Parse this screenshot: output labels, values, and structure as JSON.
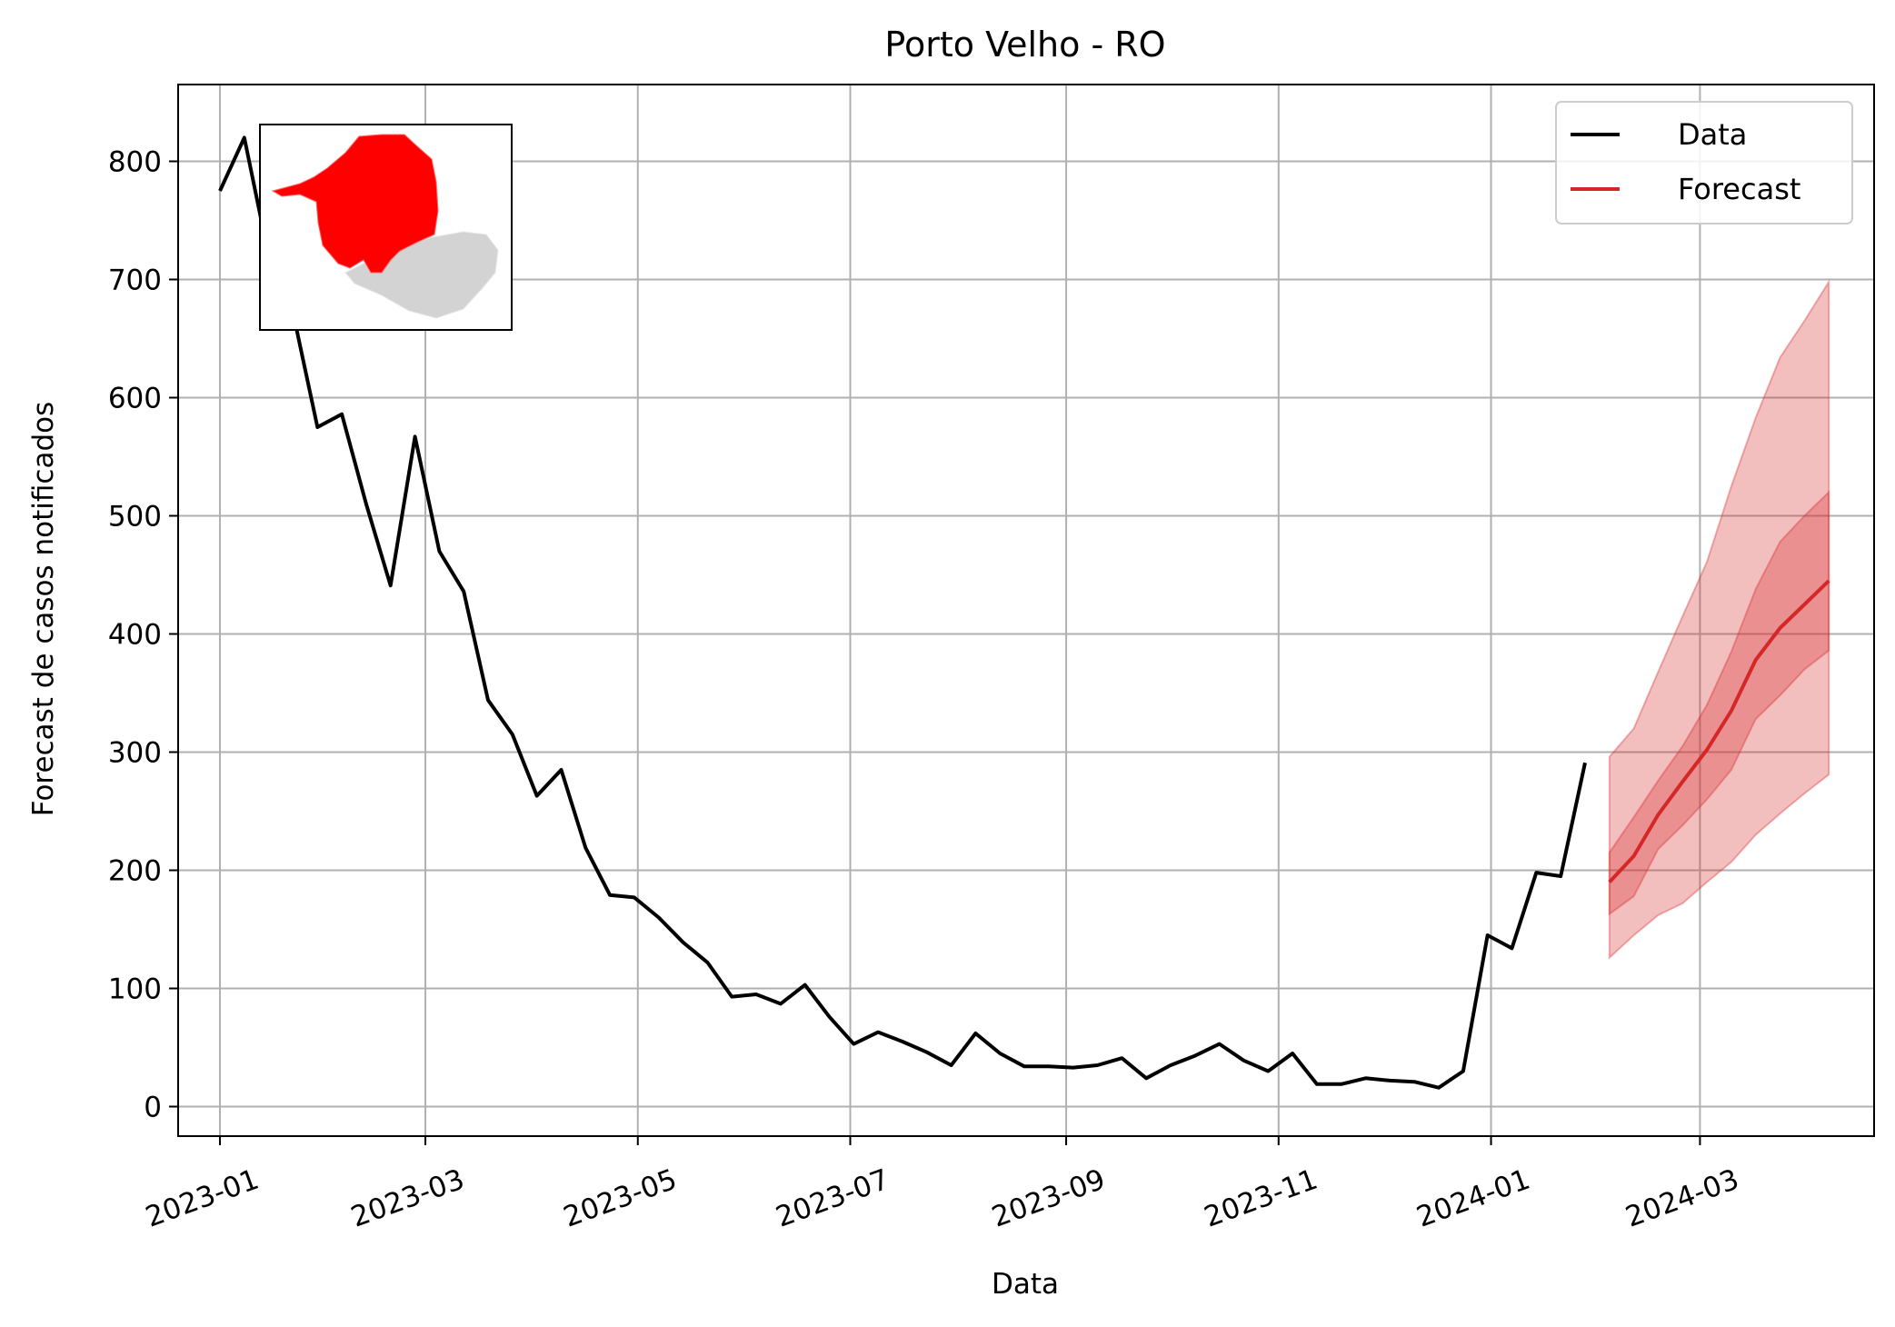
{
  "chart_data": {
    "type": "line",
    "title": "Porto Velho - RO",
    "xlabel": "Data",
    "ylabel": "Forecast de casos notificados",
    "x_tick_labels": [
      "2023-01",
      "2023-03",
      "2023-05",
      "2023-07",
      "2023-09",
      "2023-11",
      "2024-01",
      "2024-03"
    ],
    "x_tick_dates": [
      "2023-01-01",
      "2023-03-01",
      "2023-05-01",
      "2023-07-01",
      "2023-09-01",
      "2023-11-01",
      "2024-01-01",
      "2024-03-01"
    ],
    "x_range": [
      "2022-12-20",
      "2024-04-20"
    ],
    "y_ticks": [
      0,
      100,
      200,
      300,
      400,
      500,
      600,
      700,
      800
    ],
    "ylim": [
      -25,
      865
    ],
    "grid": true,
    "legend_position": "top-right",
    "series": [
      {
        "name": "Data",
        "color": "#000000",
        "points": [
          [
            "2023-01-01",
            775
          ],
          [
            "2023-01-08",
            820
          ],
          [
            "2023-01-15",
            720
          ],
          [
            "2023-01-22",
            672
          ],
          [
            "2023-01-29",
            575
          ],
          [
            "2023-02-05",
            586
          ],
          [
            "2023-02-12",
            510
          ],
          [
            "2023-02-19",
            441
          ],
          [
            "2023-02-26",
            567
          ],
          [
            "2023-03-05",
            470
          ],
          [
            "2023-03-12",
            436
          ],
          [
            "2023-03-19",
            344
          ],
          [
            "2023-03-26",
            315
          ],
          [
            "2023-04-02",
            263
          ],
          [
            "2023-04-09",
            285
          ],
          [
            "2023-04-16",
            219
          ],
          [
            "2023-04-23",
            179
          ],
          [
            "2023-04-30",
            177
          ],
          [
            "2023-05-07",
            160
          ],
          [
            "2023-05-14",
            139
          ],
          [
            "2023-05-21",
            122
          ],
          [
            "2023-05-28",
            93
          ],
          [
            "2023-06-04",
            95
          ],
          [
            "2023-06-11",
            87
          ],
          [
            "2023-06-18",
            103
          ],
          [
            "2023-06-25",
            76
          ],
          [
            "2023-07-02",
            53
          ],
          [
            "2023-07-09",
            63
          ],
          [
            "2023-07-16",
            55
          ],
          [
            "2023-07-23",
            46
          ],
          [
            "2023-07-30",
            35
          ],
          [
            "2023-08-06",
            62
          ],
          [
            "2023-08-13",
            45
          ],
          [
            "2023-08-20",
            34
          ],
          [
            "2023-08-27",
            34
          ],
          [
            "2023-09-03",
            33
          ],
          [
            "2023-09-10",
            35
          ],
          [
            "2023-09-17",
            41
          ],
          [
            "2023-09-24",
            24
          ],
          [
            "2023-10-01",
            35
          ],
          [
            "2023-10-08",
            43
          ],
          [
            "2023-10-15",
            53
          ],
          [
            "2023-10-22",
            39
          ],
          [
            "2023-10-29",
            30
          ],
          [
            "2023-11-05",
            45
          ],
          [
            "2023-11-12",
            19
          ],
          [
            "2023-11-19",
            19
          ],
          [
            "2023-11-26",
            24
          ],
          [
            "2023-12-03",
            22
          ],
          [
            "2023-12-10",
            21
          ],
          [
            "2023-12-17",
            16
          ],
          [
            "2023-12-24",
            30
          ],
          [
            "2023-12-31",
            145
          ],
          [
            "2024-01-07",
            134
          ],
          [
            "2024-01-14",
            198
          ],
          [
            "2024-01-21",
            195
          ],
          [
            "2024-01-28",
            291
          ]
        ]
      },
      {
        "name": "Forecast",
        "color": "#d62728",
        "points": [
          [
            "2024-02-04",
            190
          ],
          [
            "2024-02-11",
            212
          ],
          [
            "2024-02-18",
            247
          ],
          [
            "2024-02-25",
            275
          ],
          [
            "2024-03-03",
            302
          ],
          [
            "2024-03-10",
            335
          ],
          [
            "2024-03-17",
            378
          ],
          [
            "2024-03-24",
            405
          ],
          [
            "2024-03-31",
            425
          ],
          [
            "2024-04-07",
            445
          ]
        ],
        "band_90": {
          "lower": [
            126,
            145,
            162,
            172,
            190,
            207,
            230,
            248,
            265,
            281
          ],
          "upper": [
            296,
            320,
            368,
            415,
            461,
            525,
            583,
            634,
            665,
            698
          ]
        },
        "band_50": {
          "lower": [
            163,
            178,
            218,
            238,
            260,
            285,
            328,
            348,
            370,
            386
          ],
          "upper": [
            215,
            245,
            276,
            305,
            340,
            385,
            438,
            478,
            500,
            520
          ]
        }
      }
    ],
    "inset_map": {
      "description_colors": {
        "highlight": "#ff0000",
        "rest": "#d3d3d3"
      }
    }
  }
}
